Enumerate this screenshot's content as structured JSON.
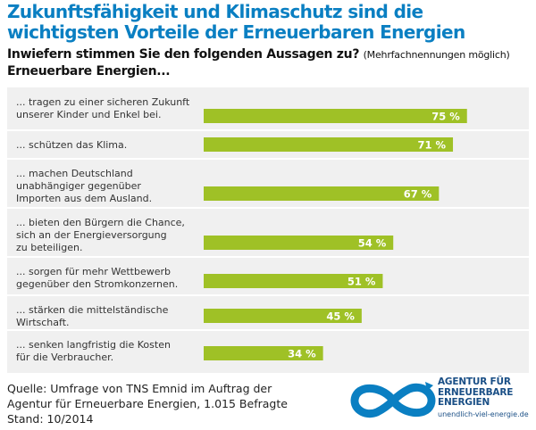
{
  "title": {
    "line1": "Zukunftsfähigkeit und Klimaschutz sind die",
    "line2": "wichtigsten Vorteile der Erneuerbaren Energien"
  },
  "question": {
    "main": "Inwiefern stimmen Sie den folgenden Aussagen zu?",
    "note": "(Mehrfachnennungen möglich)",
    "sub": "Erneuerbare Energien..."
  },
  "colors": {
    "title": "#0a7fc2",
    "bar": "#9fc126",
    "panel": "#f0f0f0",
    "divider": "#ffffff",
    "logo_blue": "#0a7fc2",
    "logo_text": "#1a4f86"
  },
  "chart_data": {
    "type": "bar",
    "orientation": "horizontal",
    "unit": "%",
    "xlim": [
      0,
      100
    ],
    "grid": false,
    "categories": [
      [
        "... tragen zu einer sicheren Zukunft",
        "unserer Kinder und Enkel bei."
      ],
      [
        "... schützen das Klima."
      ],
      [
        "... machen Deutschland",
        "unabhängiger gegenüber",
        "Importen aus dem Ausland."
      ],
      [
        "... bieten den Bürgern die Chance,",
        "sich an der Energieversorgung",
        "zu beteiligen."
      ],
      [
        "... sorgen für mehr Wettbewerb",
        "gegenüber den Stromkonzernen."
      ],
      [
        "... stärken die mittelständische",
        "Wirtschaft."
      ],
      [
        "... senken langfristig die Kosten",
        "für die Verbraucher."
      ]
    ],
    "values": [
      75,
      71,
      67,
      54,
      51,
      45,
      34
    ],
    "value_labels": [
      "75 %",
      "71 %",
      "67 %",
      "54 %",
      "51 %",
      "45 %",
      "34 %"
    ]
  },
  "source": {
    "line1": "Quelle: Umfrage von TNS Emnid im Auftrag der",
    "line2": "Agentur für Erneuerbare Energien, 1.015 Befragte",
    "line3": "Stand: 10/2014"
  },
  "logo": {
    "line1": "AGENTUR FÜR",
    "line2": "ERNEUERBARE",
    "line3": "ENERGIEN",
    "url": "unendlich-viel-energie.de"
  }
}
